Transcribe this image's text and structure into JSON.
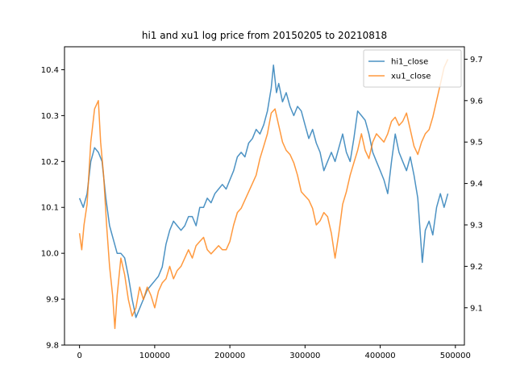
{
  "chart_data": {
    "type": "line",
    "title": "hi1 and xu1 log price from 20150205 to 20210818",
    "xlabel": "",
    "ylabel": "",
    "xlim": [
      -20000,
      512000
    ],
    "ylim_left": [
      9.8,
      10.45
    ],
    "ylim_right": [
      9.01,
      9.73
    ],
    "x_ticks": [
      0,
      100000,
      200000,
      300000,
      400000,
      500000
    ],
    "y_ticks_left": [
      9.8,
      9.9,
      10.0,
      10.1,
      10.2,
      10.3,
      10.4
    ],
    "y_ticks_right": [
      9.1,
      9.2,
      9.3,
      9.4,
      9.5,
      9.6,
      9.7
    ],
    "grid": false,
    "legend_position": "top-right",
    "series": [
      {
        "name": "hi1_close",
        "axis": "left",
        "color": "#1f77b4",
        "x": [
          0,
          5000,
          10000,
          15000,
          20000,
          25000,
          30000,
          35000,
          40000,
          45000,
          50000,
          55000,
          60000,
          65000,
          70000,
          75000,
          80000,
          85000,
          90000,
          95000,
          100000,
          105000,
          110000,
          115000,
          120000,
          125000,
          130000,
          135000,
          140000,
          145000,
          150000,
          155000,
          160000,
          165000,
          170000,
          175000,
          180000,
          185000,
          190000,
          195000,
          200000,
          205000,
          210000,
          215000,
          220000,
          225000,
          230000,
          235000,
          240000,
          245000,
          250000,
          255000,
          258000,
          262000,
          265000,
          270000,
          275000,
          280000,
          285000,
          290000,
          295000,
          300000,
          305000,
          310000,
          315000,
          320000,
          325000,
          330000,
          335000,
          340000,
          345000,
          350000,
          355000,
          360000,
          365000,
          370000,
          375000,
          380000,
          385000,
          390000,
          395000,
          400000,
          405000,
          410000,
          415000,
          420000,
          425000,
          430000,
          435000,
          440000,
          445000,
          450000,
          453000,
          456000,
          460000,
          465000,
          470000,
          475000,
          480000,
          485000,
          490000
        ],
        "values": [
          10.12,
          10.1,
          10.13,
          10.2,
          10.23,
          10.22,
          10.2,
          10.12,
          10.06,
          10.03,
          10.0,
          10.0,
          9.99,
          9.95,
          9.9,
          9.86,
          9.88,
          9.9,
          9.92,
          9.93,
          9.94,
          9.95,
          9.97,
          10.02,
          10.05,
          10.07,
          10.06,
          10.05,
          10.06,
          10.08,
          10.08,
          10.06,
          10.1,
          10.1,
          10.12,
          10.11,
          10.13,
          10.14,
          10.15,
          10.14,
          10.16,
          10.18,
          10.21,
          10.22,
          10.21,
          10.24,
          10.25,
          10.27,
          10.26,
          10.28,
          10.31,
          10.36,
          10.41,
          10.35,
          10.37,
          10.33,
          10.35,
          10.32,
          10.3,
          10.32,
          10.31,
          10.28,
          10.25,
          10.27,
          10.24,
          10.22,
          10.18,
          10.2,
          10.22,
          10.2,
          10.23,
          10.26,
          10.22,
          10.2,
          10.25,
          10.31,
          10.3,
          10.29,
          10.26,
          10.22,
          10.2,
          10.18,
          10.16,
          10.13,
          10.2,
          10.26,
          10.22,
          10.2,
          10.18,
          10.21,
          10.17,
          10.12,
          10.05,
          9.98,
          10.05,
          10.07,
          10.04,
          10.1,
          10.13,
          10.1,
          10.13
        ]
      },
      {
        "name": "xu1_close",
        "axis": "right",
        "color": "#ff7f0e",
        "x": [
          0,
          3000,
          6000,
          10000,
          15000,
          20000,
          25000,
          28000,
          32000,
          36000,
          40000,
          44000,
          47000,
          50000,
          55000,
          60000,
          65000,
          70000,
          75000,
          80000,
          85000,
          90000,
          95000,
          100000,
          105000,
          110000,
          115000,
          120000,
          125000,
          130000,
          135000,
          140000,
          145000,
          150000,
          155000,
          160000,
          165000,
          170000,
          175000,
          180000,
          185000,
          190000,
          195000,
          200000,
          205000,
          210000,
          215000,
          220000,
          225000,
          230000,
          235000,
          240000,
          245000,
          250000,
          255000,
          260000,
          265000,
          270000,
          275000,
          280000,
          285000,
          290000,
          295000,
          300000,
          305000,
          310000,
          315000,
          320000,
          325000,
          330000,
          335000,
          340000,
          345000,
          350000,
          355000,
          360000,
          365000,
          370000,
          375000,
          380000,
          385000,
          390000,
          395000,
          400000,
          405000,
          410000,
          415000,
          420000,
          425000,
          430000,
          435000,
          440000,
          445000,
          450000,
          455000,
          460000,
          465000,
          470000,
          475000,
          480000,
          485000,
          490000
        ],
        "values": [
          9.28,
          9.24,
          9.3,
          9.35,
          9.5,
          9.58,
          9.6,
          9.5,
          9.42,
          9.3,
          9.2,
          9.13,
          9.05,
          9.13,
          9.22,
          9.18,
          9.12,
          9.08,
          9.1,
          9.15,
          9.12,
          9.15,
          9.13,
          9.1,
          9.14,
          9.16,
          9.17,
          9.2,
          9.17,
          9.19,
          9.2,
          9.22,
          9.24,
          9.22,
          9.25,
          9.26,
          9.27,
          9.24,
          9.23,
          9.24,
          9.25,
          9.24,
          9.24,
          9.26,
          9.3,
          9.33,
          9.34,
          9.36,
          9.38,
          9.4,
          9.42,
          9.46,
          9.49,
          9.52,
          9.57,
          9.58,
          9.54,
          9.5,
          9.48,
          9.47,
          9.45,
          9.42,
          9.38,
          9.37,
          9.36,
          9.34,
          9.3,
          9.31,
          9.33,
          9.32,
          9.28,
          9.22,
          9.28,
          9.35,
          9.38,
          9.42,
          9.45,
          9.48,
          9.52,
          9.48,
          9.46,
          9.5,
          9.52,
          9.51,
          9.5,
          9.52,
          9.55,
          9.56,
          9.54,
          9.55,
          9.57,
          9.53,
          9.49,
          9.47,
          9.5,
          9.52,
          9.53,
          9.56,
          9.6,
          9.64,
          9.68,
          9.7
        ]
      }
    ]
  }
}
